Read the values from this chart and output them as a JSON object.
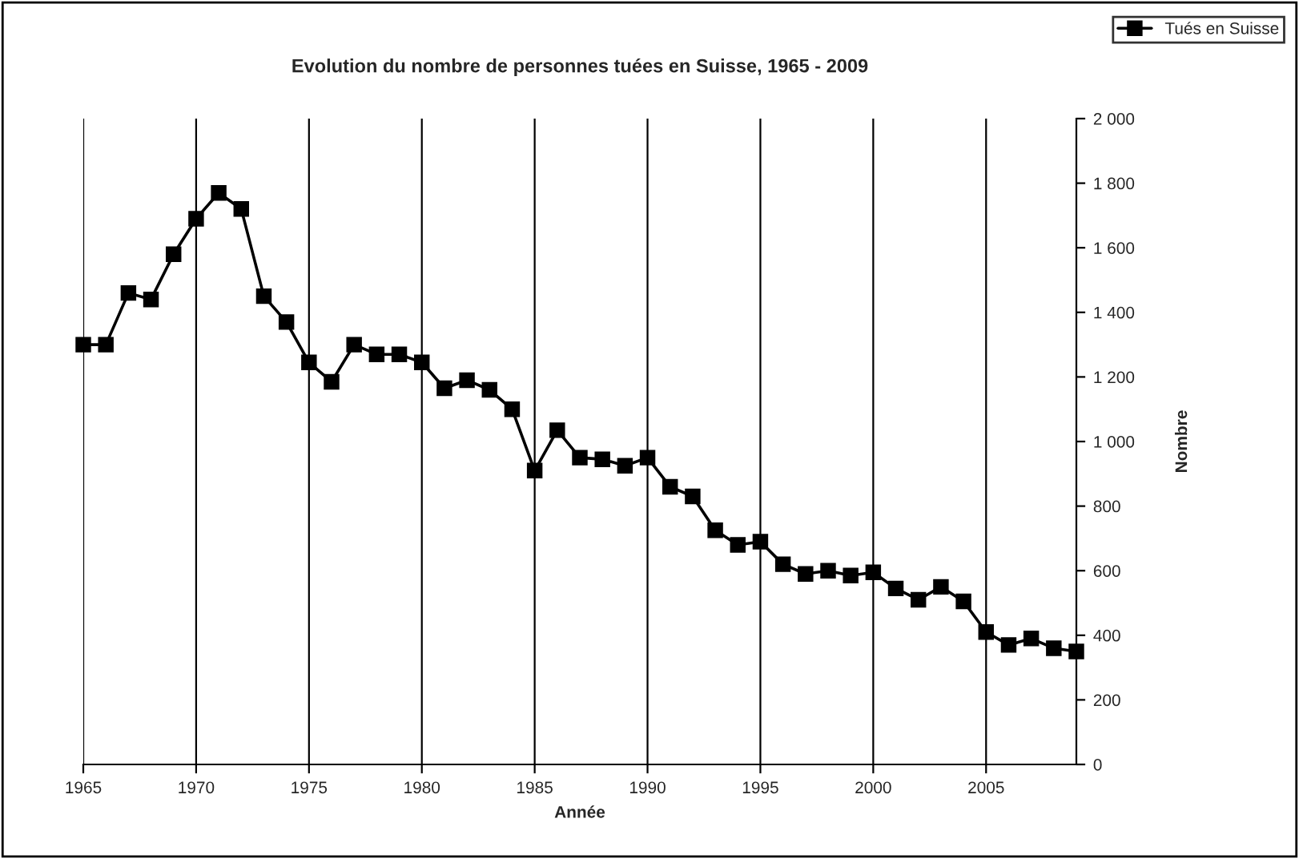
{
  "chart_data": {
    "type": "line",
    "title": "Evolution du nombre de personnes tuées en Suisse, 1965 - 2009",
    "xlabel": "Année",
    "ylabel": "Nombre",
    "x": [
      1965,
      1966,
      1967,
      1968,
      1969,
      1970,
      1971,
      1972,
      1973,
      1974,
      1975,
      1976,
      1977,
      1978,
      1979,
      1980,
      1981,
      1982,
      1983,
      1984,
      1985,
      1986,
      1987,
      1988,
      1989,
      1990,
      1991,
      1992,
      1993,
      1994,
      1995,
      1996,
      1997,
      1998,
      1999,
      2000,
      2001,
      2002,
      2003,
      2004,
      2005,
      2006,
      2007,
      2008,
      2009
    ],
    "series": [
      {
        "name": "Tués en Suisse",
        "color": "#000000",
        "values": [
          1300,
          1300,
          1460,
          1440,
          1580,
          1690,
          1770,
          1720,
          1450,
          1370,
          1245,
          1185,
          1300,
          1270,
          1270,
          1245,
          1165,
          1190,
          1160,
          1100,
          910,
          1035,
          950,
          945,
          925,
          950,
          860,
          830,
          725,
          680,
          690,
          620,
          590,
          600,
          585,
          595,
          545,
          510,
          550,
          505,
          410,
          370,
          390,
          360,
          350
        ]
      }
    ],
    "xlim": [
      1965,
      2009
    ],
    "xticks": [
      1965,
      1970,
      1975,
      1980,
      1985,
      1990,
      1995,
      2000,
      2005
    ],
    "ylim": [
      0,
      2000
    ],
    "yticks": [
      {
        "value": 0,
        "label": "0"
      },
      {
        "value": 200,
        "label": "200"
      },
      {
        "value": 400,
        "label": "400"
      },
      {
        "value": 600,
        "label": "600"
      },
      {
        "value": 800,
        "label": "800"
      },
      {
        "value": 1000,
        "label": "1 000"
      },
      {
        "value": 1200,
        "label": "1 200"
      },
      {
        "value": 1400,
        "label": "1 400"
      },
      {
        "value": 1600,
        "label": "1 600"
      },
      {
        "value": 1800,
        "label": "1 800"
      },
      {
        "value": 2000,
        "label": "2 000"
      }
    ],
    "grid": "x",
    "legend": "top right",
    "marker": "square",
    "line_style": "solid"
  }
}
